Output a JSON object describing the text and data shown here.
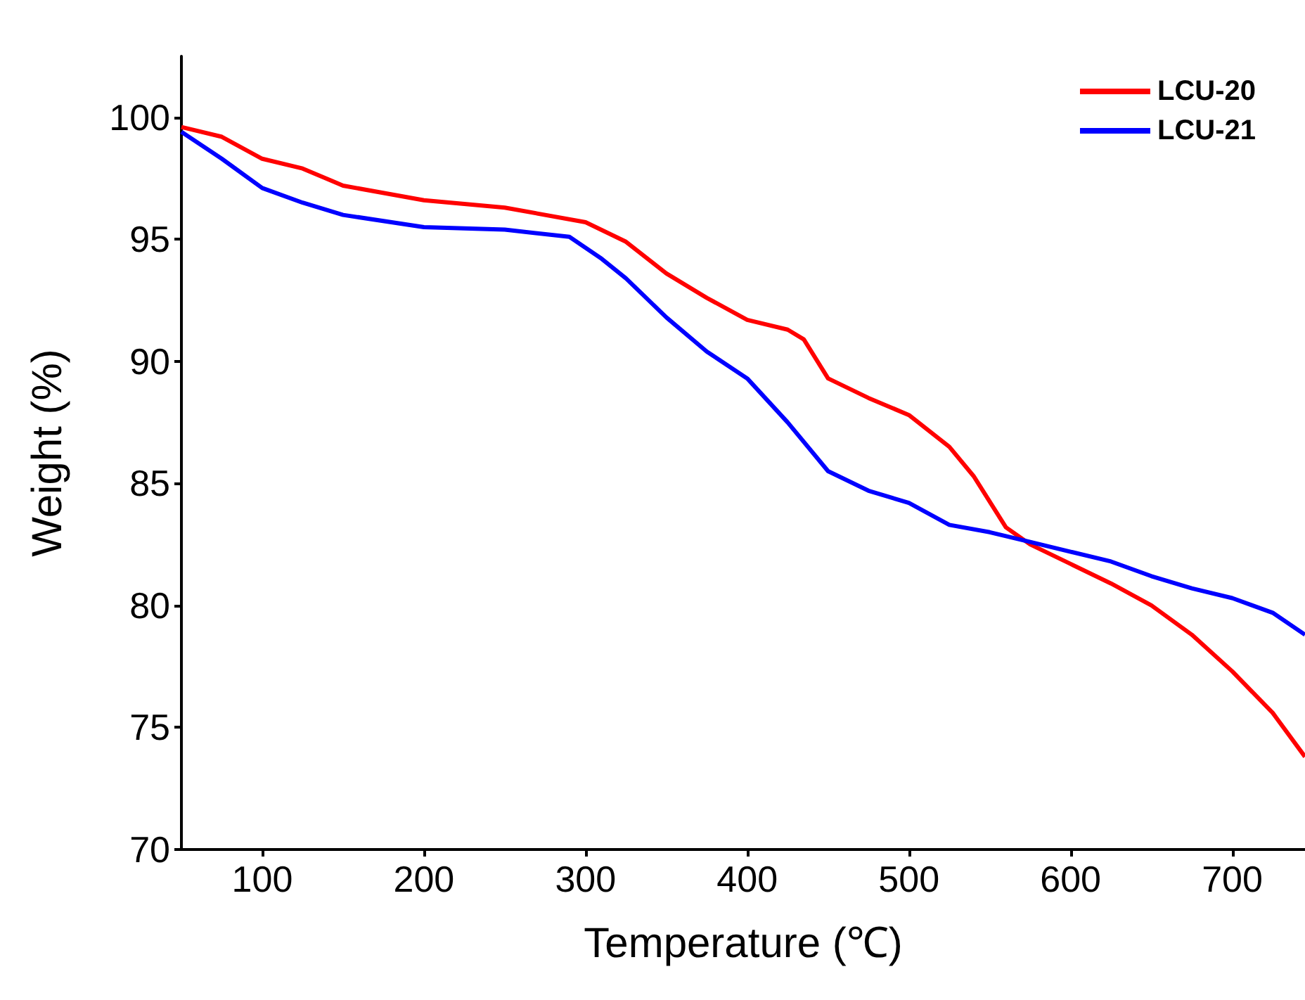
{
  "chart_data": {
    "type": "line",
    "xlabel": "Temperature (℃)",
    "ylabel": "Weight (%)",
    "xlim": [
      50,
      745
    ],
    "xticks": [
      100,
      200,
      300,
      400,
      500,
      600,
      700
    ],
    "ylim": [
      70,
      102.5
    ],
    "yticks": [
      70,
      75,
      80,
      85,
      90,
      95,
      100
    ],
    "grid": false,
    "legend": "top right",
    "marker": "none",
    "line_style": "solid",
    "series": [
      {
        "name": "LCU-20",
        "color": "#ff0000",
        "x": [
          50,
          75,
          100,
          125,
          150,
          200,
          250,
          300,
          325,
          350,
          375,
          400,
          425,
          435,
          450,
          475,
          500,
          525,
          540,
          560,
          575,
          600,
          625,
          650,
          675,
          700,
          725,
          745
        ],
        "values": [
          99.6,
          99.2,
          98.3,
          97.9,
          97.2,
          96.6,
          96.3,
          95.7,
          94.9,
          93.6,
          92.6,
          91.7,
          91.3,
          90.9,
          89.3,
          88.5,
          87.8,
          86.5,
          85.3,
          83.2,
          82.5,
          81.7,
          80.9,
          80.0,
          78.8,
          77.3,
          75.6,
          73.8
        ]
      },
      {
        "name": "LCU-21",
        "color": "#0000ff",
        "x": [
          50,
          75,
          100,
          125,
          150,
          200,
          250,
          290,
          310,
          325,
          350,
          375,
          400,
          425,
          450,
          475,
          500,
          525,
          550,
          575,
          600,
          625,
          650,
          675,
          700,
          725,
          745
        ],
        "values": [
          99.4,
          98.3,
          97.1,
          96.5,
          96.0,
          95.5,
          95.4,
          95.1,
          94.2,
          93.4,
          91.8,
          90.4,
          89.3,
          87.5,
          85.5,
          84.7,
          84.2,
          83.3,
          83.0,
          82.6,
          82.2,
          81.8,
          81.2,
          80.7,
          80.3,
          79.7,
          78.8
        ]
      }
    ]
  }
}
